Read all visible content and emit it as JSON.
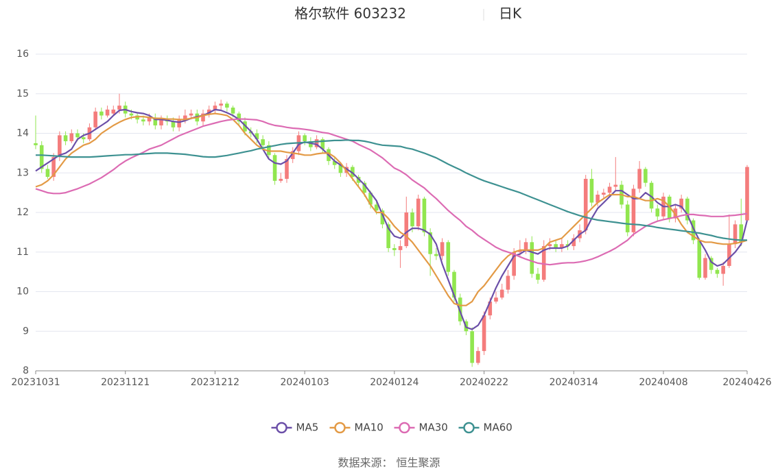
{
  "chart_data": {
    "type": "candlestick",
    "title": "格尔软件 603232",
    "subtitle": "日K",
    "source": "数据来源： 恒生聚源",
    "up_color": "#f47c7c",
    "down_color": "#91e64f",
    "ylim": [
      8,
      16
    ],
    "yticks": [
      8,
      9,
      10,
      11,
      12,
      13,
      14,
      15,
      16
    ],
    "grid": true,
    "categories": [
      "20231031",
      null,
      null,
      null,
      null,
      null,
      null,
      null,
      null,
      null,
      null,
      null,
      null,
      null,
      null,
      "20231121",
      null,
      null,
      null,
      null,
      null,
      null,
      null,
      null,
      null,
      null,
      null,
      null,
      null,
      null,
      "20231212",
      null,
      null,
      null,
      null,
      null,
      null,
      null,
      null,
      null,
      null,
      null,
      null,
      null,
      null,
      "20240103",
      null,
      null,
      null,
      null,
      null,
      null,
      null,
      null,
      null,
      null,
      null,
      null,
      null,
      null,
      "20240124",
      null,
      null,
      null,
      null,
      null,
      null,
      null,
      null,
      null,
      null,
      null,
      null,
      null,
      null,
      "20240222",
      null,
      null,
      null,
      null,
      null,
      null,
      null,
      null,
      null,
      null,
      null,
      null,
      null,
      null,
      "20240314",
      null,
      null,
      null,
      null,
      null,
      null,
      null,
      null,
      null,
      null,
      null,
      null,
      null,
      null,
      "20240408",
      null,
      null,
      null,
      null,
      null,
      null,
      null,
      null,
      null,
      null,
      null,
      null,
      null,
      "20240426"
    ],
    "open": [
      13.75,
      13.7,
      13.1,
      12.9,
      13.4,
      13.95,
      13.8,
      14.0,
      13.9,
      13.85,
      14.15,
      14.55,
      14.45,
      14.5,
      14.6,
      14.7,
      14.5,
      14.45,
      14.35,
      14.3,
      14.4,
      14.2,
      14.35,
      14.3,
      14.15,
      14.35,
      14.45,
      14.5,
      14.3,
      14.5,
      14.6,
      14.7,
      14.75,
      14.65,
      14.5,
      14.3,
      14.05,
      14.0,
      13.85,
      13.7,
      13.45,
      12.8,
      12.85,
      13.35,
      13.55,
      13.95,
      13.8,
      13.65,
      13.85,
      13.6,
      13.3,
      13.2,
      13.0,
      13.15,
      12.9,
      12.75,
      12.5,
      12.2,
      12.05,
      11.7,
      11.1,
      11.05,
      11.15,
      12.0,
      11.65,
      12.35,
      11.5,
      10.95,
      10.9,
      11.25,
      10.5,
      9.85,
      9.25,
      9.0,
      8.2,
      8.5,
      9.4,
      9.75,
      9.85,
      10.05,
      10.4,
      11.0,
      11.05,
      11.25,
      10.45,
      10.3,
      11.15,
      11.2,
      11.1,
      11.2,
      11.15,
      11.35,
      11.55,
      12.85,
      12.25,
      12.45,
      12.5,
      12.65,
      12.7,
      12.2,
      11.5,
      12.6,
      13.1,
      12.75,
      12.1,
      11.9,
      12.4,
      11.85,
      12.1,
      12.35,
      11.8,
      11.3,
      10.35,
      10.85,
      10.55,
      10.45,
      10.65,
      11.2,
      11.7,
      11.8
    ],
    "close": [
      13.7,
      13.1,
      12.9,
      13.4,
      13.95,
      13.8,
      14.0,
      13.9,
      13.85,
      14.15,
      14.55,
      14.45,
      14.6,
      14.6,
      14.7,
      14.5,
      14.45,
      14.35,
      14.3,
      14.4,
      14.2,
      14.35,
      14.3,
      14.15,
      14.35,
      14.45,
      14.5,
      14.3,
      14.5,
      14.6,
      14.7,
      14.75,
      14.65,
      14.5,
      14.3,
      14.05,
      14.0,
      13.85,
      13.7,
      13.45,
      12.8,
      12.85,
      13.35,
      13.55,
      13.95,
      13.8,
      13.65,
      13.85,
      13.6,
      13.3,
      13.2,
      13.0,
      13.15,
      12.9,
      12.75,
      12.5,
      12.2,
      12.05,
      11.7,
      11.1,
      11.05,
      11.15,
      12.0,
      11.65,
      12.35,
      11.5,
      10.95,
      10.9,
      11.25,
      10.5,
      9.85,
      9.25,
      9.0,
      8.2,
      8.5,
      9.4,
      9.75,
      9.85,
      10.05,
      10.4,
      11.0,
      11.05,
      11.25,
      10.45,
      10.3,
      11.15,
      11.2,
      11.1,
      11.2,
      11.15,
      11.35,
      11.55,
      12.85,
      12.25,
      12.45,
      12.5,
      12.65,
      12.7,
      12.2,
      11.5,
      12.6,
      13.1,
      12.75,
      12.1,
      11.9,
      12.4,
      11.85,
      12.1,
      12.35,
      11.8,
      11.3,
      10.35,
      10.85,
      10.55,
      10.45,
      10.65,
      11.2,
      11.7,
      11.25,
      13.15
    ],
    "high": [
      14.45,
      13.8,
      13.2,
      13.5,
      14.05,
      14.05,
      14.1,
      14.1,
      14.0,
      14.25,
      14.65,
      14.65,
      14.7,
      14.7,
      15.0,
      14.8,
      14.6,
      14.5,
      14.45,
      14.5,
      14.5,
      14.45,
      14.45,
      14.4,
      14.45,
      14.6,
      14.6,
      14.6,
      14.6,
      14.7,
      14.8,
      14.85,
      14.8,
      14.7,
      14.55,
      14.4,
      14.15,
      14.1,
      13.95,
      13.8,
      13.5,
      13.0,
      13.45,
      13.65,
      14.05,
      14.0,
      13.9,
      13.95,
      13.9,
      13.65,
      13.4,
      13.25,
      13.25,
      13.2,
      12.95,
      12.8,
      12.55,
      12.3,
      12.1,
      11.75,
      11.2,
      11.3,
      12.4,
      12.1,
      12.45,
      12.4,
      11.6,
      11.1,
      11.35,
      11.3,
      10.55,
      9.95,
      9.3,
      9.1,
      8.6,
      9.5,
      9.85,
      10.0,
      10.2,
      10.55,
      11.1,
      11.3,
      11.35,
      11.4,
      10.6,
      11.3,
      11.35,
      11.3,
      11.35,
      11.3,
      11.45,
      11.7,
      12.95,
      13.1,
      12.55,
      12.6,
      12.75,
      13.4,
      12.8,
      12.3,
      12.7,
      13.3,
      13.15,
      12.8,
      12.2,
      12.5,
      12.45,
      12.2,
      12.45,
      12.4,
      11.85,
      11.35,
      10.95,
      10.9,
      10.6,
      10.75,
      11.95,
      11.8,
      12.35,
      13.2
    ],
    "low": [
      13.6,
      13.0,
      12.85,
      12.8,
      13.3,
      13.7,
      13.75,
      13.8,
      13.75,
      13.8,
      14.1,
      14.35,
      14.4,
      14.45,
      14.5,
      14.4,
      14.35,
      14.25,
      14.2,
      14.2,
      14.1,
      14.1,
      14.2,
      14.05,
      14.05,
      14.25,
      14.35,
      14.2,
      14.2,
      14.4,
      14.5,
      14.6,
      14.55,
      14.4,
      14.2,
      13.95,
      13.9,
      13.75,
      13.6,
      13.35,
      12.7,
      12.75,
      12.75,
      13.25,
      13.45,
      13.7,
      13.55,
      13.6,
      13.5,
      13.2,
      13.1,
      12.9,
      12.9,
      12.8,
      12.65,
      12.4,
      12.1,
      11.95,
      11.6,
      11.0,
      10.9,
      10.6,
      11.1,
      11.5,
      11.55,
      11.4,
      10.4,
      10.8,
      10.8,
      10.4,
      9.75,
      9.15,
      8.9,
      8.1,
      8.15,
      8.4,
      9.3,
      9.7,
      9.8,
      9.95,
      10.3,
      10.9,
      10.95,
      10.35,
      10.2,
      10.25,
      11.05,
      11.0,
      11.0,
      11.05,
      11.05,
      11.25,
      11.45,
      12.15,
      12.15,
      12.35,
      12.4,
      12.55,
      12.1,
      11.4,
      11.4,
      12.5,
      12.65,
      12.0,
      11.8,
      11.8,
      11.75,
      11.75,
      12.0,
      11.7,
      11.2,
      10.3,
      10.3,
      10.45,
      10.35,
      10.15,
      10.6,
      11.1,
      11.15,
      11.75
    ],
    "series": [
      {
        "name": "MA5",
        "color": "#6b4fa8",
        "values": [
          13.05,
          13.15,
          13.25,
          13.35,
          13.45,
          13.5,
          13.6,
          13.85,
          13.95,
          14.0,
          14.1,
          14.2,
          14.3,
          14.45,
          14.58,
          14.6,
          14.55,
          14.52,
          14.5,
          14.45,
          14.35,
          14.35,
          14.33,
          14.3,
          14.28,
          14.32,
          14.38,
          14.42,
          14.45,
          14.52,
          14.6,
          14.58,
          14.52,
          14.45,
          14.35,
          14.2,
          14.05,
          13.85,
          13.6,
          13.35,
          13.25,
          13.22,
          13.3,
          13.5,
          13.72,
          13.78,
          13.75,
          13.72,
          13.6,
          13.45,
          13.3,
          13.2,
          13.1,
          13.0,
          12.85,
          12.7,
          12.5,
          12.3,
          11.95,
          11.6,
          11.4,
          11.35,
          11.5,
          11.6,
          11.6,
          11.55,
          11.45,
          11.2,
          10.7,
          10.3,
          9.9,
          9.5,
          9.1,
          9.05,
          9.15,
          9.4,
          9.75,
          10.1,
          10.4,
          10.65,
          10.9,
          10.95,
          11.05,
          11.0,
          10.95,
          11.05,
          11.1,
          11.1,
          11.1,
          11.15,
          11.3,
          11.45,
          11.55,
          11.85,
          12.1,
          12.25,
          12.4,
          12.55,
          12.55,
          12.45,
          12.35,
          12.35,
          12.5,
          12.4,
          12.25,
          12.15,
          12.15,
          12.2,
          12.15,
          11.95,
          11.6,
          11.3,
          11.05,
          10.75,
          10.65,
          10.7,
          10.85,
          11.0,
          11.2,
          11.8
        ]
      },
      {
        "name": "MA10",
        "color": "#e39a45",
        "values": [
          12.65,
          12.7,
          12.8,
          12.95,
          13.15,
          13.35,
          13.5,
          13.6,
          13.7,
          13.75,
          13.85,
          14.0,
          14.1,
          14.2,
          14.28,
          14.35,
          14.4,
          14.42,
          14.42,
          14.4,
          14.38,
          14.38,
          14.36,
          14.36,
          14.35,
          14.35,
          14.38,
          14.4,
          14.45,
          14.48,
          14.5,
          14.48,
          14.45,
          14.35,
          14.2,
          14.0,
          13.85,
          13.7,
          13.6,
          13.55,
          13.55,
          13.55,
          13.52,
          13.5,
          13.48,
          13.45,
          13.45,
          13.48,
          13.5,
          13.5,
          13.4,
          13.25,
          13.05,
          12.85,
          12.65,
          12.45,
          12.2,
          12.0,
          12.0,
          11.85,
          11.65,
          11.5,
          11.4,
          11.25,
          11.05,
          10.85,
          10.65,
          10.4,
          10.15,
          9.9,
          9.7,
          9.65,
          9.65,
          9.75,
          10.0,
          10.15,
          10.35,
          10.55,
          10.75,
          10.9,
          11.0,
          11.05,
          11.05,
          11.05,
          11.05,
          11.1,
          11.25,
          11.3,
          11.35,
          11.5,
          11.65,
          11.8,
          11.95,
          12.1,
          12.25,
          12.35,
          12.45,
          12.45,
          12.45,
          12.4,
          12.4,
          12.35,
          12.3,
          12.3,
          12.35,
          12.3,
          12.15,
          11.95,
          11.7,
          11.5,
          11.4,
          11.3,
          11.25,
          11.25,
          11.22,
          11.2,
          11.2,
          11.22,
          11.25,
          11.3
        ]
      },
      {
        "name": "MA30",
        "color": "#dc6bb3",
        "values": [
          12.6,
          12.55,
          12.5,
          12.48,
          12.48,
          12.5,
          12.55,
          12.6,
          12.66,
          12.72,
          12.8,
          12.88,
          12.98,
          13.08,
          13.2,
          13.3,
          13.38,
          13.45,
          13.52,
          13.6,
          13.65,
          13.7,
          13.78,
          13.86,
          13.94,
          14.0,
          14.06,
          14.12,
          14.18,
          14.22,
          14.26,
          14.3,
          14.33,
          14.35,
          14.36,
          14.36,
          14.35,
          14.34,
          14.3,
          14.24,
          14.2,
          14.18,
          14.15,
          14.13,
          14.12,
          14.1,
          14.08,
          14.05,
          14.02,
          14.0,
          13.95,
          13.9,
          13.85,
          13.8,
          13.72,
          13.65,
          13.58,
          13.48,
          13.38,
          13.25,
          13.12,
          13.05,
          12.95,
          12.82,
          12.72,
          12.62,
          12.48,
          12.35,
          12.2,
          12.05,
          11.92,
          11.8,
          11.65,
          11.55,
          11.42,
          11.32,
          11.22,
          11.12,
          11.05,
          11.0,
          10.95,
          10.88,
          10.82,
          10.77,
          10.72,
          10.7,
          10.68,
          10.7,
          10.72,
          10.73,
          10.73,
          10.75,
          10.78,
          10.82,
          10.88,
          10.95,
          11.02,
          11.1,
          11.2,
          11.3,
          11.45,
          11.55,
          11.65,
          11.72,
          11.78,
          11.82,
          11.85,
          11.88,
          11.92,
          11.95,
          11.95,
          11.93,
          11.92,
          11.9,
          11.9,
          11.9,
          11.92,
          11.93,
          11.95,
          11.97
        ]
      },
      {
        "name": "MA60",
        "color": "#3d9191",
        "values": [
          13.45,
          13.45,
          13.44,
          13.43,
          13.42,
          13.41,
          13.4,
          13.4,
          13.4,
          13.4,
          13.41,
          13.42,
          13.43,
          13.44,
          13.45,
          13.46,
          13.46,
          13.47,
          13.48,
          13.49,
          13.5,
          13.5,
          13.5,
          13.49,
          13.48,
          13.47,
          13.45,
          13.43,
          13.41,
          13.4,
          13.4,
          13.42,
          13.44,
          13.47,
          13.5,
          13.53,
          13.56,
          13.6,
          13.63,
          13.66,
          13.69,
          13.72,
          13.74,
          13.75,
          13.76,
          13.77,
          13.78,
          13.79,
          13.8,
          13.81,
          13.82,
          13.82,
          13.83,
          13.82,
          13.82,
          13.8,
          13.77,
          13.73,
          13.7,
          13.69,
          13.68,
          13.67,
          13.63,
          13.6,
          13.55,
          13.5,
          13.44,
          13.38,
          13.3,
          13.22,
          13.15,
          13.08,
          13.0,
          12.93,
          12.86,
          12.8,
          12.75,
          12.7,
          12.65,
          12.6,
          12.55,
          12.5,
          12.44,
          12.38,
          12.32,
          12.26,
          12.2,
          12.14,
          12.08,
          12.02,
          11.97,
          11.92,
          11.88,
          11.84,
          11.81,
          11.79,
          11.77,
          11.75,
          11.73,
          11.71,
          11.7,
          11.69,
          11.67,
          11.65,
          11.62,
          11.6,
          11.58,
          11.56,
          11.54,
          11.52,
          11.5,
          11.48,
          11.45,
          11.42,
          11.38,
          11.35,
          11.33,
          11.31,
          11.3,
          11.3
        ]
      }
    ]
  }
}
